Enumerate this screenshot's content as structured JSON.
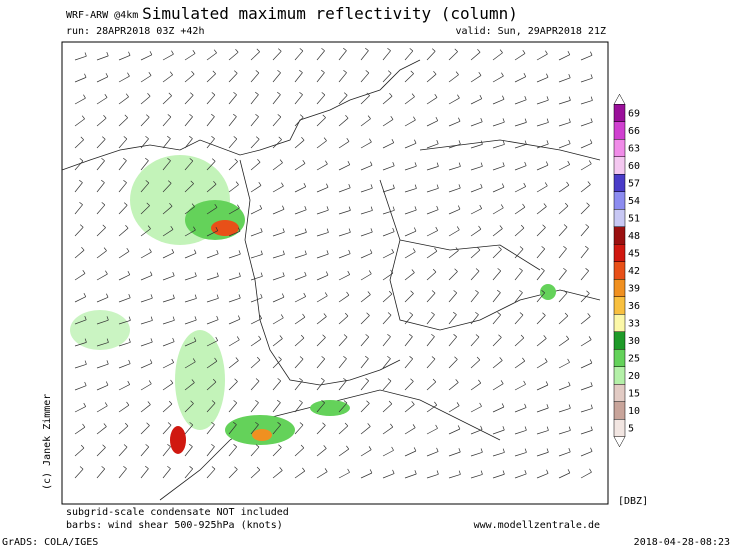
{
  "header": {
    "model": "WRF-ARW @4km",
    "title": "Simulated maximum reflectivity (column)",
    "run": "run: 28APR2018 03Z +42h",
    "valid": "valid: Sun, 29APR2018 21Z"
  },
  "copyright": "(c) Janek Zimmer",
  "colorbar": {
    "unit": "[DBZ]",
    "levels": [
      5,
      10,
      15,
      20,
      25,
      30,
      33,
      36,
      39,
      42,
      45,
      48,
      51,
      54,
      57,
      60,
      63,
      66,
      69
    ],
    "colors": [
      "#f2e6e2",
      "#c8a49a",
      "#e2cbc4",
      "#b4f0a8",
      "#64d25a",
      "#1e9a28",
      "#fcf8a8",
      "#f8c040",
      "#f09020",
      "#e85018",
      "#d01810",
      "#9a1010",
      "#c8c8f4",
      "#8c8cf0",
      "#4a3cc8",
      "#f4c8f0",
      "#f08ce8",
      "#d040d0",
      "#9a109a"
    ]
  },
  "notes": {
    "condensate": "subgrid-scale condensate NOT included",
    "barbs": "barbs: wind shear 500-925hPa (knots)",
    "website": "www.modellzentrale.de"
  },
  "footer": {
    "software": "GrADS: COLA/IGES",
    "timestamp": "2018-04-28-08:23"
  }
}
